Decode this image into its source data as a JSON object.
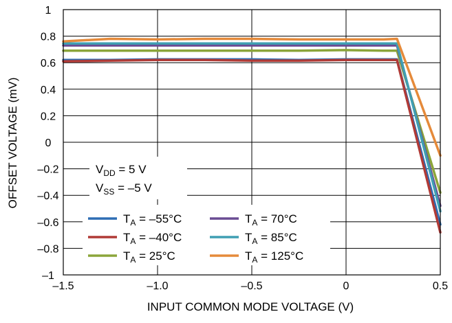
{
  "chart_data": {
    "type": "line",
    "title": "",
    "xlabel": "INPUT COMMON MODE VOLTAGE (V)",
    "ylabel": "OFFSET VOLTAGE (mV)",
    "xlim": [
      -1.5,
      0.5
    ],
    "ylim": [
      -1,
      1
    ],
    "x_ticks": [
      -1.5,
      -1.0,
      -0.5,
      0,
      0.5
    ],
    "x_tick_labels": [
      "–1.5",
      "–1.0",
      "–0.5",
      "0",
      "0.5"
    ],
    "y_ticks": [
      1,
      0.8,
      0.6,
      0.4,
      0.2,
      0,
      -0.2,
      -0.4,
      -0.6,
      -0.8,
      -1
    ],
    "y_tick_labels": [
      "1",
      "0.8",
      "0.6",
      "0.4",
      "0.2",
      "0",
      "–0.2",
      "–0.4",
      "–0.6",
      "–0.8",
      "–1"
    ],
    "grid": true,
    "legend_position": "bottom-left",
    "conditions": [
      {
        "main": "V",
        "sub": "DD",
        "rest": " = 5 V"
      },
      {
        "main": "V",
        "sub": "SS",
        "rest": " = –5 V"
      }
    ],
    "series": [
      {
        "name": "T_A = –55°C",
        "label_main": "T",
        "label_sub": "A",
        "label_rest": " = –55°C",
        "color": "#2e6db4",
        "x": [
          -1.5,
          -1.25,
          -1.0,
          -0.75,
          -0.5,
          -0.25,
          0,
          0.2,
          0.27,
          0.5
        ],
        "y": [
          0.62,
          0.62,
          0.625,
          0.625,
          0.625,
          0.62,
          0.625,
          0.625,
          0.625,
          -0.62
        ]
      },
      {
        "name": "T_A = –40°C",
        "label_main": "T",
        "label_sub": "A",
        "label_rest": " = –40°C",
        "color": "#b03a36",
        "x": [
          -1.5,
          -1.25,
          -1.0,
          -0.75,
          -0.5,
          -0.25,
          0,
          0.2,
          0.27,
          0.5
        ],
        "y": [
          0.61,
          0.615,
          0.62,
          0.62,
          0.615,
          0.615,
          0.62,
          0.62,
          0.62,
          -0.68
        ]
      },
      {
        "name": "T_A = 25°C",
        "label_main": "T",
        "label_sub": "A",
        "label_rest": " = 25°C",
        "color": "#8ba53a",
        "x": [
          -1.5,
          -1.25,
          -1.0,
          -0.75,
          -0.5,
          -0.25,
          0,
          0.2,
          0.27,
          0.5
        ],
        "y": [
          0.69,
          0.69,
          0.69,
          0.69,
          0.69,
          0.69,
          0.695,
          0.69,
          0.69,
          -0.38
        ]
      },
      {
        "name": "T_A = 70°C",
        "label_main": "T",
        "label_sub": "A",
        "label_rest": " = 70°C",
        "color": "#6a4c93",
        "x": [
          -1.5,
          -1.25,
          -1.0,
          -0.75,
          -0.5,
          -0.25,
          0,
          0.2,
          0.27,
          0.5
        ],
        "y": [
          0.73,
          0.73,
          0.73,
          0.73,
          0.73,
          0.73,
          0.73,
          0.73,
          0.73,
          -0.48
        ]
      },
      {
        "name": "T_A = 85°C",
        "label_main": "T",
        "label_sub": "A",
        "label_rest": " = 85°C",
        "color": "#3f9fb3",
        "x": [
          -1.5,
          -1.25,
          -1.0,
          -0.75,
          -0.5,
          -0.25,
          0,
          0.2,
          0.27,
          0.5
        ],
        "y": [
          0.745,
          0.745,
          0.745,
          0.745,
          0.745,
          0.745,
          0.745,
          0.745,
          0.745,
          -0.52
        ]
      },
      {
        "name": "T_A = 125°C",
        "label_main": "T",
        "label_sub": "A",
        "label_rest": " = 125°C",
        "color": "#e58a3a",
        "x": [
          -1.5,
          -1.25,
          -1.0,
          -0.75,
          -0.5,
          -0.25,
          0,
          0.2,
          0.27,
          0.5
        ],
        "y": [
          0.76,
          0.78,
          0.775,
          0.78,
          0.78,
          0.775,
          0.775,
          0.775,
          0.78,
          -0.1
        ]
      }
    ]
  }
}
